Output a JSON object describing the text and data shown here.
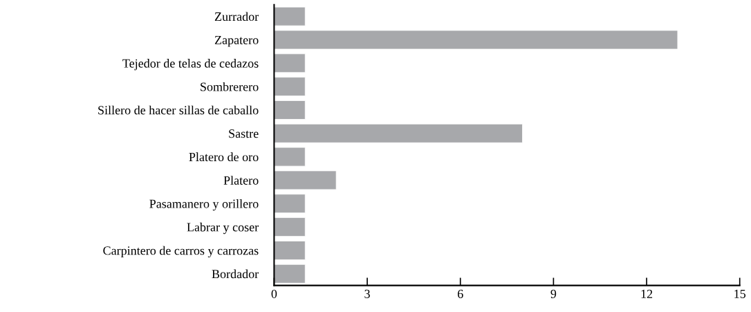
{
  "chart_data": {
    "type": "bar",
    "orientation": "horizontal",
    "categories": [
      "Zurrador",
      "Zapatero",
      "Tejedor de telas de cedazos",
      "Sombrerero",
      "Sillero de hacer sillas de caballo",
      "Sastre",
      "Platero de oro",
      "Platero",
      "Pasamanero y orillero",
      "Labrar y coser",
      "Carpintero de carros y carrozas",
      "Bordador"
    ],
    "values": [
      1,
      13,
      1,
      1,
      1,
      8,
      1,
      2,
      1,
      1,
      1,
      1
    ],
    "color": "#a7a8ab",
    "xlim": [
      0,
      15
    ],
    "xticks": [
      0,
      3,
      6,
      9,
      12,
      15
    ],
    "grid": false,
    "legend": false
  }
}
